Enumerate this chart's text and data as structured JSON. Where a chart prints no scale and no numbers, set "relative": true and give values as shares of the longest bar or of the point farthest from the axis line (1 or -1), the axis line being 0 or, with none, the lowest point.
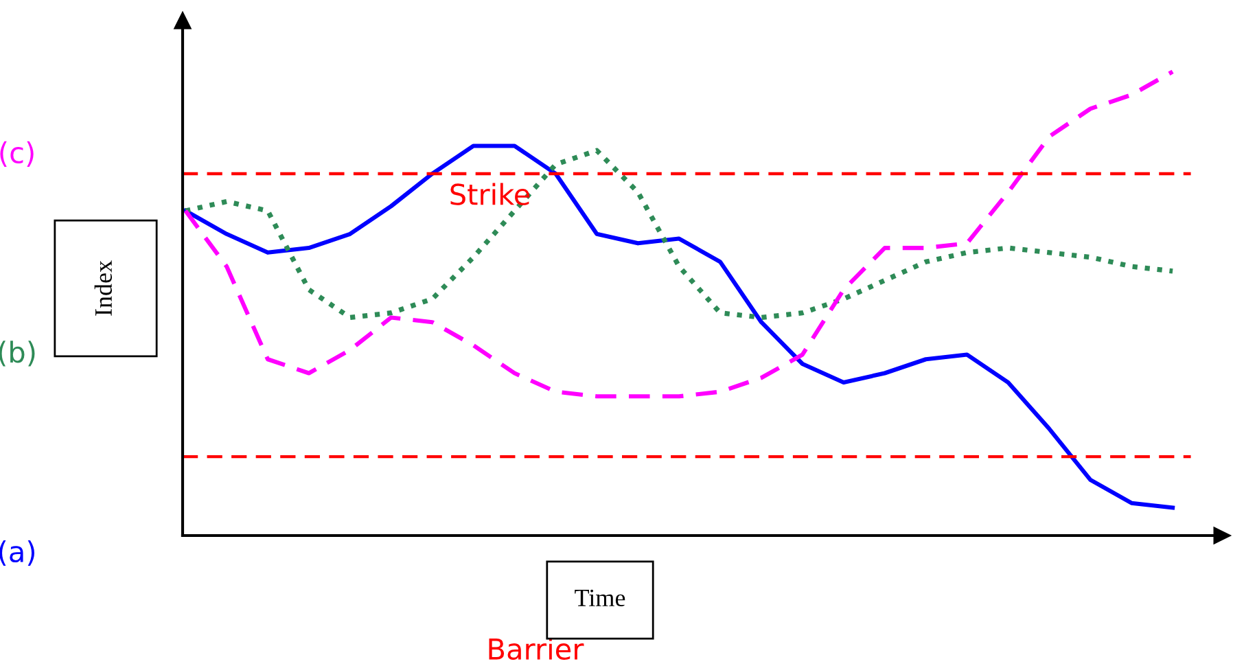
{
  "chart_data": {
    "type": "line",
    "relative": true,
    "xlabel": "Time",
    "ylabel": "Index",
    "legend": false,
    "marker": "none",
    "categories": [
      null,
      null,
      null,
      null,
      null,
      null,
      null,
      null,
      null,
      null,
      null,
      null,
      null,
      null,
      null,
      null,
      null,
      null,
      null,
      null,
      null,
      null,
      null,
      null,
      null
    ],
    "series": [
      {
        "name": "(a)",
        "color": "#0000ff",
        "line_style": "solid",
        "values": [
          0.7,
          0.65,
          0.61,
          0.62,
          0.65,
          0.71,
          0.78,
          0.84,
          0.84,
          0.78,
          0.65,
          0.63,
          0.64,
          0.59,
          0.46,
          0.37,
          0.33,
          0.35,
          0.38,
          0.39,
          0.33,
          0.23,
          0.12,
          0.07,
          0.06
        ]
      },
      {
        "name": "(b)",
        "color": "#2e8b57",
        "line_style": "dotted",
        "values": [
          0.7,
          0.72,
          0.7,
          0.53,
          0.47,
          0.48,
          0.51,
          0.6,
          0.7,
          0.8,
          0.83,
          0.74,
          0.58,
          0.48,
          0.47,
          0.48,
          0.51,
          0.55,
          0.59,
          0.61,
          0.62,
          0.61,
          0.6,
          0.58,
          0.57
        ]
      },
      {
        "name": "(c)",
        "color": "#ff00ff",
        "line_style": "dashed",
        "values": [
          0.7,
          0.58,
          0.38,
          0.35,
          0.4,
          0.47,
          0.46,
          0.41,
          0.35,
          0.31,
          0.3,
          0.3,
          0.3,
          0.31,
          0.34,
          0.39,
          0.53,
          0.62,
          0.62,
          0.63,
          0.74,
          0.86,
          0.92,
          0.95,
          1.0
        ]
      }
    ],
    "ref_lines": [
      {
        "axis": "y",
        "value": 0.78,
        "label": "Strike",
        "color": "#ff0000",
        "line_style": "dashed"
      },
      {
        "axis": "y",
        "value": 0.17,
        "label": "Barrier",
        "color": "#ff0000",
        "line_style": "dashed"
      }
    ]
  }
}
